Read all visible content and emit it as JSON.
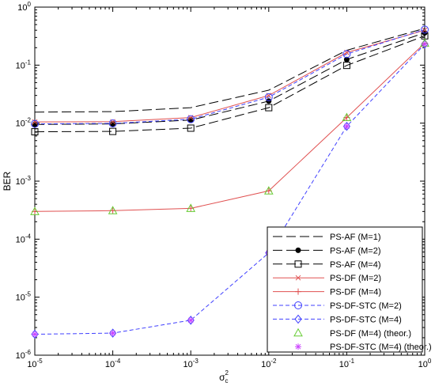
{
  "chart_data": {
    "type": "line",
    "xscale": "log",
    "yscale": "log",
    "xlim": [
      1e-05,
      1
    ],
    "ylim": [
      1e-06,
      1
    ],
    "xlabel": "σ",
    "xlabel_sub": "c",
    "xlabel_sup": "2",
    "ylabel": "BER",
    "legend_position": "bottom-right",
    "grid": false,
    "x_ticks": [
      {
        "value": 1e-05,
        "base": "10",
        "exp": "-5"
      },
      {
        "value": 0.0001,
        "base": "10",
        "exp": "-4"
      },
      {
        "value": 0.001,
        "base": "10",
        "exp": "-3"
      },
      {
        "value": 0.01,
        "base": "10",
        "exp": "-2"
      },
      {
        "value": 0.1,
        "base": "10",
        "exp": "-1"
      },
      {
        "value": 1,
        "base": "10",
        "exp": "0"
      }
    ],
    "y_ticks": [
      {
        "value": 1e-06,
        "base": "10",
        "exp": "-6"
      },
      {
        "value": 1e-05,
        "base": "10",
        "exp": "-5"
      },
      {
        "value": 0.0001,
        "base": "10",
        "exp": "-4"
      },
      {
        "value": 0.001,
        "base": "10",
        "exp": "-3"
      },
      {
        "value": 0.01,
        "base": "10",
        "exp": "-2"
      },
      {
        "value": 0.1,
        "base": "10",
        "exp": "-1"
      },
      {
        "value": 1,
        "base": "10",
        "exp": "0"
      }
    ],
    "x": [
      1e-05,
      0.0001,
      0.001,
      0.01,
      0.1,
      1
    ],
    "series": [
      {
        "name": "PS-AF (M=1)",
        "y": [
          0.0155,
          0.0158,
          0.0185,
          0.037,
          0.18,
          0.43
        ],
        "color": "#000000",
        "dash": "long",
        "marker": "none"
      },
      {
        "name": "PS-AF (M=2)",
        "y": [
          0.0095,
          0.0097,
          0.0113,
          0.024,
          0.125,
          0.36
        ],
        "color": "#000000",
        "dash": "long",
        "marker": "dot"
      },
      {
        "name": "PS-AF (M=4)",
        "y": [
          0.0071,
          0.0072,
          0.0082,
          0.0185,
          0.099,
          0.32
        ],
        "color": "#000000",
        "dash": "long",
        "marker": "square"
      },
      {
        "name": "PS-DF (M=2)",
        "y": [
          0.0105,
          0.0106,
          0.0125,
          0.03,
          0.165,
          0.4
        ],
        "color": "#e05050",
        "dash": "solid",
        "marker": "x"
      },
      {
        "name": "PS-DF (M=4)",
        "y": [
          0.0003,
          0.00031,
          0.00034,
          0.00068,
          0.0125,
          0.24
        ],
        "color": "#e05050",
        "dash": "solid",
        "marker": "plus"
      },
      {
        "name": "PS-DF-STC (M=2)",
        "y": [
          0.0097,
          0.0099,
          0.0117,
          0.028,
          0.155,
          0.41
        ],
        "color": "#4040ff",
        "dash": "dash",
        "marker": "circle"
      },
      {
        "name": "PS-DF-STC (M=4)",
        "y": [
          2.3e-06,
          2.4e-06,
          4e-06,
          5.8e-05,
          0.0088,
          0.23
        ],
        "color": "#4040ff",
        "dash": "dash",
        "marker": "diamond"
      },
      {
        "name": "PS-DF (M=4) (theor.)",
        "y": [
          0.0003,
          0.00031,
          0.00034,
          0.00068,
          0.0125,
          0.24
        ],
        "color": "#66cc33",
        "dash": "none",
        "marker": "triangle"
      },
      {
        "name": "PS-DF-STC (M=4) (theor.)",
        "y": [
          2.3e-06,
          2.4e-06,
          4e-06,
          5.8e-05,
          0.0088,
          0.23
        ],
        "color": "#cc44ff",
        "dash": "none",
        "marker": "star"
      }
    ]
  }
}
